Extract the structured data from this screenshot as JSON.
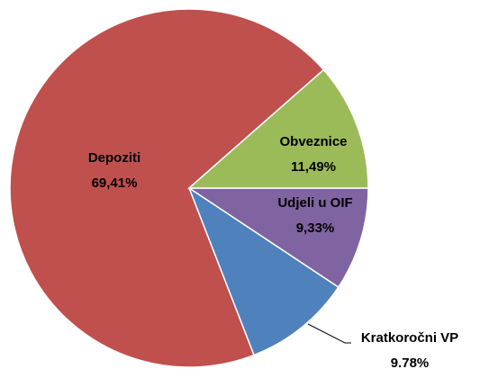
{
  "chart_data": {
    "type": "pie",
    "categories": [
      "Udjeli u OIF",
      "Kratkoročni VP",
      "Depoziti",
      "Obveznice"
    ],
    "values": [
      9.33,
      9.78,
      69.41,
      11.49
    ],
    "value_labels": [
      "9,33%",
      "9.78%",
      "69,41%",
      "11,49%"
    ],
    "colors": [
      "#8064a2",
      "#4f81bd",
      "#c0504d",
      "#9bbb59"
    ]
  }
}
